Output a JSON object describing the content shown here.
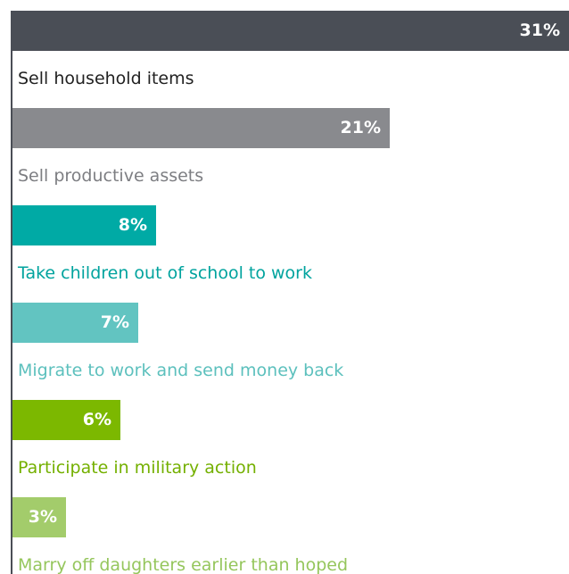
{
  "chart_data": {
    "type": "bar",
    "orientation": "horizontal",
    "categories": [
      "Sell household items",
      "Sell productive assets",
      "Take children out of school to work",
      "Migrate to work and send money back",
      "Participate in military action",
      "Marry off daughters earlier than hoped"
    ],
    "values": [
      31,
      21,
      8,
      7,
      6,
      3
    ],
    "value_labels": [
      "31%",
      "21%",
      "8%",
      "7%",
      "6%",
      "3%"
    ],
    "unit": "%",
    "xlim": [
      0,
      31
    ],
    "grid": false,
    "legend": "none",
    "colors": [
      "#4a4e56",
      "#898a8e",
      "#00aaa5",
      "#62c4c1",
      "#7cb800",
      "#a3cc6b"
    ],
    "label_colors": [
      "#222222",
      "#7d7e82",
      "#00a39e",
      "#5cc0bd",
      "#74b000",
      "#95c65c"
    ]
  }
}
